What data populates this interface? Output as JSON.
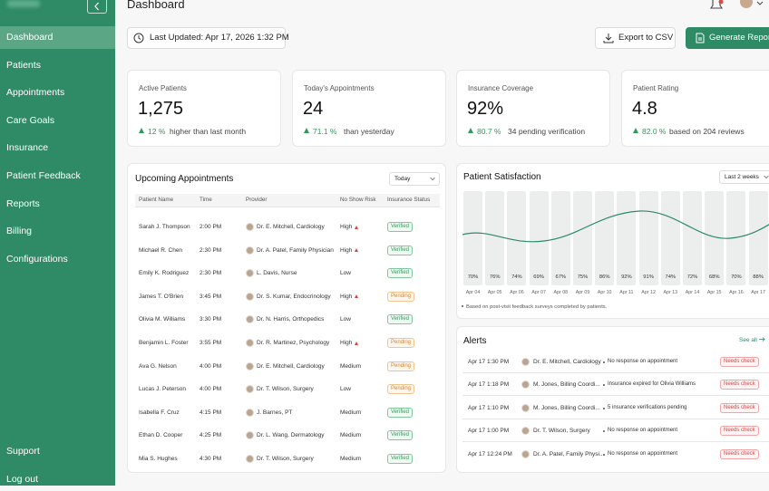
{
  "sidebar": {
    "nav": [
      "Dashboard",
      "Patients",
      "Appointments",
      "Care Goals",
      "Insurance",
      "Patient Feedback",
      "Reports",
      "Billing",
      "Configurations"
    ],
    "footer": [
      "Support",
      "Log out"
    ]
  },
  "header": {
    "title": "Dashboard"
  },
  "toolbar": {
    "last_updated": "Last Updated: Apr 17, 2026 1:32 PM",
    "export": "Export to CSV",
    "generate": "Generate Report"
  },
  "kpis": [
    {
      "label": "Active Patients",
      "value": "1,275",
      "change": "12 %",
      "note": "higher than last month"
    },
    {
      "label": "Today's Appointments",
      "value": "24",
      "change": "71.1 %",
      "note": "than yesterday"
    },
    {
      "label": "Insurance Coverage",
      "value": "92%",
      "change": "80.7 %",
      "note": "34 pending verification"
    },
    {
      "label": "Patient Rating",
      "value": "4.8",
      "change": "82.0 %",
      "note": "based on 204 reviews"
    }
  ],
  "appointments": {
    "title": "Upcoming Appointments",
    "filter": "Today",
    "columns": [
      "Patient Name",
      "Time",
      "Provider",
      "No Show Risk",
      "Insurance Status"
    ],
    "rows": [
      [
        "Sarah J. Thompson",
        "2:00 PM",
        "Dr. E. Mitchell, Cardiology",
        "High",
        "Verified"
      ],
      [
        "Michael R. Chen",
        "2:30 PM",
        "Dr. A. Patel, Family Physician",
        "High",
        "Verified"
      ],
      [
        "Emily K. Rodriguez",
        "2:30 PM",
        "L. Davis, Nurse",
        "Low",
        "Verified"
      ],
      [
        "James T. O'Brien",
        "3:45 PM",
        "Dr. S. Kumar, Endocrinology",
        "High",
        "Pending"
      ],
      [
        "Olivia M. Williams",
        "3:30 PM",
        "Dr. N. Harris, Orthopedics",
        "Low",
        "Verified"
      ],
      [
        "Benjamin L. Foster",
        "3:55 PM",
        "Dr. R. Martinez, Psychology",
        "High",
        "Pending"
      ],
      [
        "Ava G. Nelson",
        "4:00 PM",
        "Dr. E. Mitchell, Cardiology",
        "Medium",
        "Pending"
      ],
      [
        "Lucas J. Peterson",
        "4:00 PM",
        "Dr. T. Wilson, Surgery",
        "Low",
        "Pending"
      ],
      [
        "Isabella F. Cruz",
        "4:15 PM",
        "J. Barnes, PT",
        "Medium",
        "Verified"
      ],
      [
        "Ethan D. Cooper",
        "4:25 PM",
        "Dr. L. Wang, Dermatology",
        "Medium",
        "Verified"
      ],
      [
        "Mia S. Hughes",
        "4:30 PM",
        "Dr. T. Wilson, Surgery",
        "Medium",
        "Verified"
      ]
    ]
  },
  "satisfaction": {
    "title": "Patient Satisfaction",
    "filter": "Last 2 weeks",
    "bars": [
      {
        "label": "70%",
        "date": "Apr 04"
      },
      {
        "label": "76%",
        "date": "Apr 05"
      },
      {
        "label": "74%",
        "date": "Apr 06"
      },
      {
        "label": "69%",
        "date": "Apr 07"
      },
      {
        "label": "67%",
        "date": "Apr 08"
      },
      {
        "label": "75%",
        "date": "Apr 09"
      },
      {
        "label": "86%",
        "date": "Apr 10"
      },
      {
        "label": "92%",
        "date": "Apr 11"
      },
      {
        "label": "91%",
        "date": "Apr 12"
      },
      {
        "label": "74%",
        "date": "Apr 13"
      },
      {
        "label": "72%",
        "date": "Apr 14"
      },
      {
        "label": "68%",
        "date": "Apr 15"
      },
      {
        "label": "70%",
        "date": "Apr 16"
      },
      {
        "label": "88%",
        "date": "Apr 17"
      }
    ],
    "note": "Based on post-visit feedback surveys completed by patients."
  },
  "alerts": {
    "title": "Alerts",
    "link": "See all",
    "rows": [
      {
        "time": "Apr 17 1:30 PM",
        "who": "Dr. E. Mitchell, Cardiology",
        "message": "No response on appointment",
        "status": "Needs check"
      },
      {
        "time": "Apr 17 1:18 PM",
        "who": "M. Jones, Billing Coordi...",
        "message": "Insurance expired for Olivia Williams",
        "status": "Needs check"
      },
      {
        "time": "Apr 17 1:10 PM",
        "who": "M. Jones, Billing Coordi...",
        "message": "5 insurance verifications pending",
        "status": "Needs check"
      },
      {
        "time": "Apr 17 1:00 PM",
        "who": "Dr. T. Wilson, Surgery",
        "message": "No response on appointment",
        "status": "Needs check"
      },
      {
        "time": "Apr 17 12:24 PM",
        "who": "Dr. A. Patel, Family Physi...",
        "message": "No response on appointment",
        "status": "Needs check"
      }
    ]
  }
}
